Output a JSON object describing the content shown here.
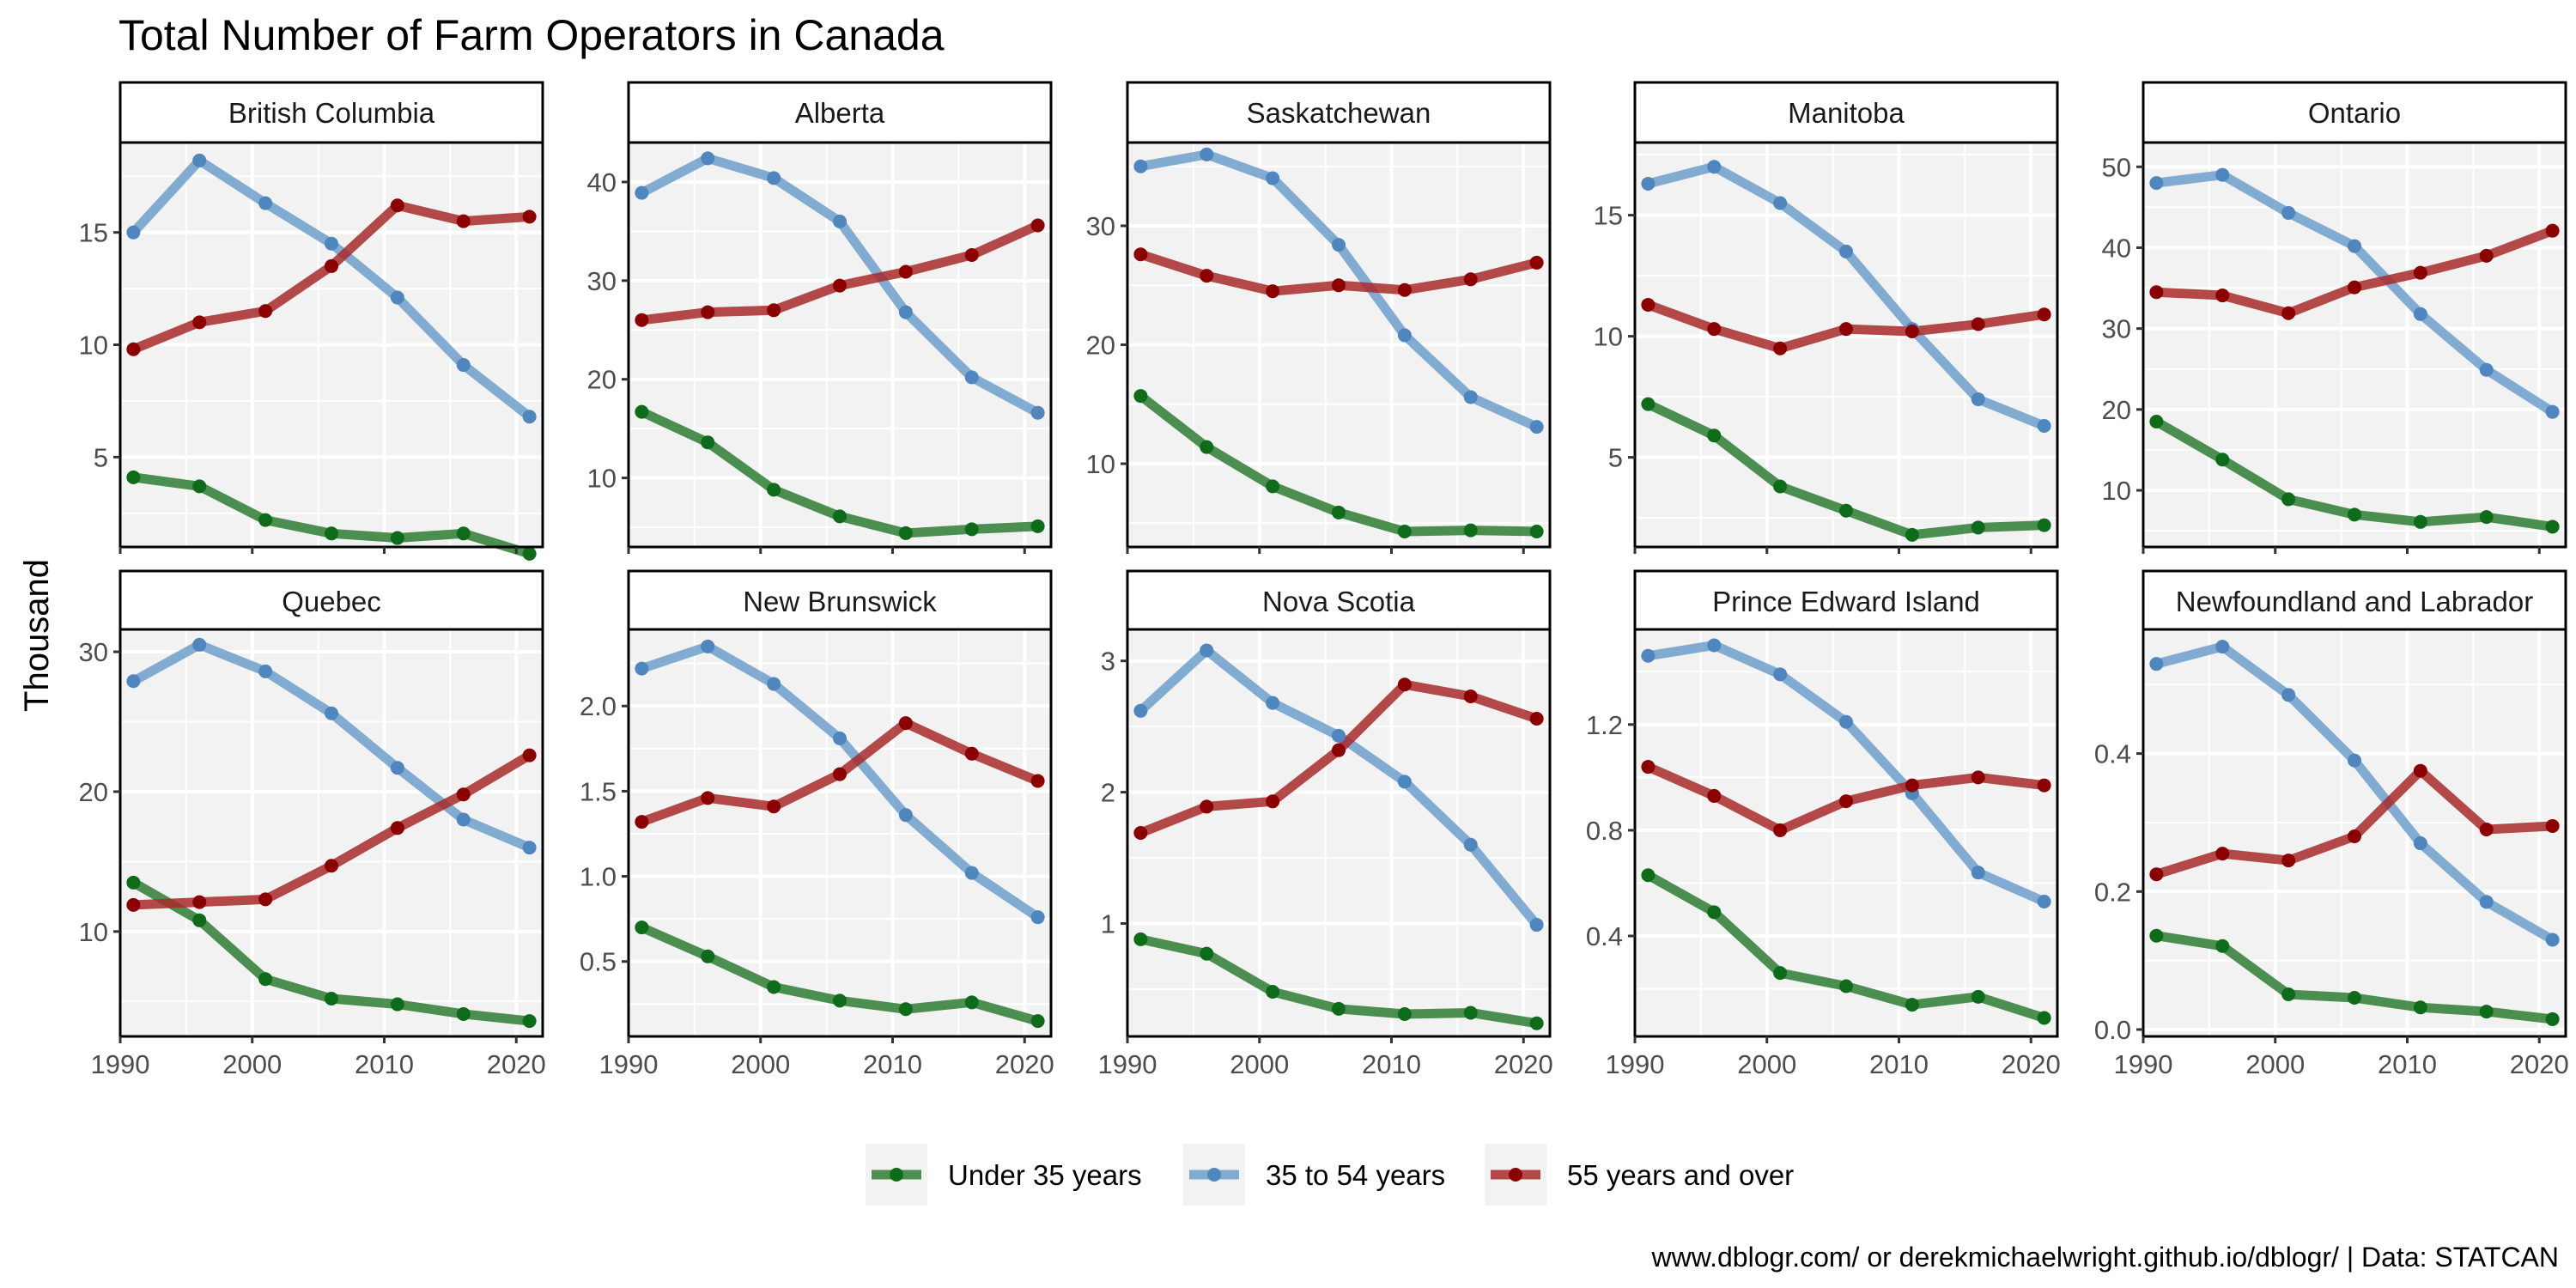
{
  "title": "Total Number of Farm Operators in Canada",
  "ylabel": "Thousand",
  "caption": "www.dblogr.com/ or derekmichaelwright.github.io/dblogr/ | Data: STATCAN",
  "colors": {
    "Under 35 years": "#2e7d32",
    "35 to 54 years": "#6e9fcb",
    "55 years and over": "#a82a2a"
  },
  "point_colors": {
    "Under 35 years": "#0d6b1a",
    "35 to 54 years": "#4f86be",
    "55 years and over": "#8b0000"
  },
  "legend": [
    "Under 35 years",
    "35 to 54 years",
    "55 years and over"
  ],
  "chart_data": {
    "type": "line",
    "title": "Total Number of Farm Operators in Canada",
    "ylabel": "Thousand",
    "x": [
      1991,
      1996,
      2001,
      2006,
      2011,
      2016,
      2021
    ],
    "xlim": [
      1990,
      2022
    ],
    "xticks": [
      1990,
      2000,
      2010,
      2020
    ],
    "legend_position": "bottom",
    "grid": true,
    "panels": [
      {
        "name": "British Columbia",
        "ylim": [
          1,
          19
        ],
        "yticks": [
          5,
          10,
          15
        ],
        "ytick_labels": [
          "5",
          "10",
          "15"
        ],
        "series": [
          {
            "name": "Under 35 years",
            "values": [
              4.1,
              3.7,
              2.2,
              1.6,
              1.4,
              1.6,
              0.7
            ]
          },
          {
            "name": "35 to 54 years",
            "values": [
              15.0,
              18.2,
              16.3,
              14.5,
              12.1,
              9.1,
              6.8
            ]
          },
          {
            "name": "55 years and over",
            "values": [
              9.8,
              11.0,
              11.5,
              13.5,
              16.2,
              15.5,
              15.7
            ]
          }
        ]
      },
      {
        "name": "Alberta",
        "ylim": [
          3,
          44
        ],
        "yticks": [
          10,
          20,
          30,
          40
        ],
        "ytick_labels": [
          "10",
          "20",
          "30",
          "40"
        ],
        "series": [
          {
            "name": "Under 35 years",
            "values": [
              16.7,
              13.6,
              8.8,
              6.1,
              4.4,
              4.8,
              5.1
            ]
          },
          {
            "name": "35 to 54 years",
            "values": [
              38.9,
              42.4,
              40.4,
              36.0,
              26.8,
              20.2,
              16.6
            ]
          },
          {
            "name": "55 years and over",
            "values": [
              26.0,
              26.8,
              27.0,
              29.5,
              30.9,
              32.6,
              35.6
            ]
          }
        ]
      },
      {
        "name": "Saskatchewan",
        "ylim": [
          3,
          37
        ],
        "yticks": [
          10,
          20,
          30
        ],
        "ytick_labels": [
          "10",
          "20",
          "30"
        ],
        "series": [
          {
            "name": "Under 35 years",
            "values": [
              15.7,
              11.4,
              8.1,
              5.9,
              4.3,
              4.4,
              4.3
            ]
          },
          {
            "name": "35 to 54 years",
            "values": [
              35.0,
              36.0,
              34.0,
              28.4,
              20.8,
              15.6,
              13.1
            ]
          },
          {
            "name": "55 years and over",
            "values": [
              27.6,
              25.8,
              24.5,
              25.0,
              24.6,
              25.5,
              26.9
            ]
          }
        ]
      },
      {
        "name": "Manitoba",
        "ylim": [
          1.3,
          18
        ],
        "yticks": [
          5,
          10,
          15
        ],
        "ytick_labels": [
          "5",
          "10",
          "15"
        ],
        "series": [
          {
            "name": "Under 35 years",
            "values": [
              7.2,
              5.9,
              3.8,
              2.8,
              1.8,
              2.1,
              2.2
            ]
          },
          {
            "name": "35 to 54 years",
            "values": [
              16.3,
              17.0,
              15.5,
              13.5,
              10.3,
              7.4,
              6.3
            ]
          },
          {
            "name": "55 years and over",
            "values": [
              11.3,
              10.3,
              9.5,
              10.3,
              10.2,
              10.5,
              10.9
            ]
          }
        ]
      },
      {
        "name": "Ontario",
        "ylim": [
          3,
          53
        ],
        "yticks": [
          10,
          20,
          30,
          40,
          50
        ],
        "ytick_labels": [
          "10",
          "20",
          "30",
          "40",
          "50"
        ],
        "series": [
          {
            "name": "Under 35 years",
            "values": [
              18.5,
              13.8,
              8.9,
              7.0,
              6.1,
              6.7,
              5.5
            ]
          },
          {
            "name": "35 to 54 years",
            "values": [
              48.0,
              49.0,
              44.3,
              40.2,
              31.8,
              24.9,
              19.7
            ]
          },
          {
            "name": "55 years and over",
            "values": [
              34.5,
              34.1,
              31.9,
              35.1,
              36.9,
              39.0,
              42.1
            ]
          }
        ]
      },
      {
        "name": "Quebec",
        "ylim": [
          2.5,
          31.6
        ],
        "yticks": [
          10,
          20,
          30
        ],
        "ytick_labels": [
          "10",
          "20",
          "30"
        ],
        "series": [
          {
            "name": "Under 35 years",
            "values": [
              13.5,
              10.8,
              6.6,
              5.2,
              4.8,
              4.1,
              3.6
            ]
          },
          {
            "name": "35 to 54 years",
            "values": [
              27.9,
              30.5,
              28.6,
              25.6,
              21.7,
              18.0,
              16.0
            ]
          },
          {
            "name": "55 years and over",
            "values": [
              11.9,
              12.1,
              12.3,
              14.7,
              17.4,
              19.8,
              22.6
            ]
          }
        ]
      },
      {
        "name": "New Brunswick",
        "ylim": [
          0.06,
          2.45
        ],
        "yticks": [
          0.5,
          1.0,
          1.5,
          2.0
        ],
        "ytick_labels": [
          "0.5",
          "1.0",
          "1.5",
          "2.0"
        ],
        "series": [
          {
            "name": "Under 35 years",
            "values": [
              0.7,
              0.53,
              0.35,
              0.27,
              0.22,
              0.26,
              0.15
            ]
          },
          {
            "name": "35 to 54 years",
            "values": [
              2.22,
              2.35,
              2.13,
              1.81,
              1.36,
              1.02,
              0.76
            ]
          },
          {
            "name": "55 years and over",
            "values": [
              1.32,
              1.46,
              1.41,
              1.6,
              1.9,
              1.72,
              1.56
            ]
          }
        ]
      },
      {
        "name": "Nova Scotia",
        "ylim": [
          0.14,
          3.24
        ],
        "yticks": [
          1,
          2,
          3
        ],
        "ytick_labels": [
          "1",
          "2",
          "3"
        ],
        "series": [
          {
            "name": "Under 35 years",
            "values": [
              0.88,
              0.77,
              0.48,
              0.35,
              0.31,
              0.32,
              0.24
            ]
          },
          {
            "name": "35 to 54 years",
            "values": [
              2.62,
              3.08,
              2.68,
              2.43,
              2.08,
              1.6,
              0.99
            ]
          },
          {
            "name": "55 years and over",
            "values": [
              1.69,
              1.89,
              1.93,
              2.32,
              2.82,
              2.73,
              2.56
            ]
          }
        ]
      },
      {
        "name": "Prince Edward Island",
        "ylim": [
          0.02,
          1.56
        ],
        "yticks": [
          0.4,
          0.8,
          1.2
        ],
        "ytick_labels": [
          "0.4",
          "0.8",
          "1.2"
        ],
        "series": [
          {
            "name": "Under 35 years",
            "values": [
              0.63,
              0.49,
              0.26,
              0.21,
              0.14,
              0.17,
              0.09
            ]
          },
          {
            "name": "35 to 54 years",
            "values": [
              1.46,
              1.5,
              1.39,
              1.21,
              0.94,
              0.64,
              0.53
            ]
          },
          {
            "name": "55 years and over",
            "values": [
              1.04,
              0.93,
              0.8,
              0.91,
              0.97,
              1.0,
              0.97
            ]
          }
        ]
      },
      {
        "name": "Newfoundland and Labrador",
        "ylim": [
          -0.01,
          0.58
        ],
        "yticks": [
          0.0,
          0.2,
          0.4
        ],
        "ytick_labels": [
          "0.0",
          "0.2",
          "0.4"
        ],
        "series": [
          {
            "name": "Under 35 years",
            "values": [
              0.136,
              0.121,
              0.051,
              0.046,
              0.032,
              0.026,
              0.015
            ]
          },
          {
            "name": "35 to 54 years",
            "values": [
              0.53,
              0.555,
              0.485,
              0.39,
              0.27,
              0.185,
              0.13
            ]
          },
          {
            "name": "55 years and over",
            "values": [
              0.225,
              0.255,
              0.245,
              0.28,
              0.375,
              0.29,
              0.295
            ]
          }
        ]
      }
    ]
  }
}
